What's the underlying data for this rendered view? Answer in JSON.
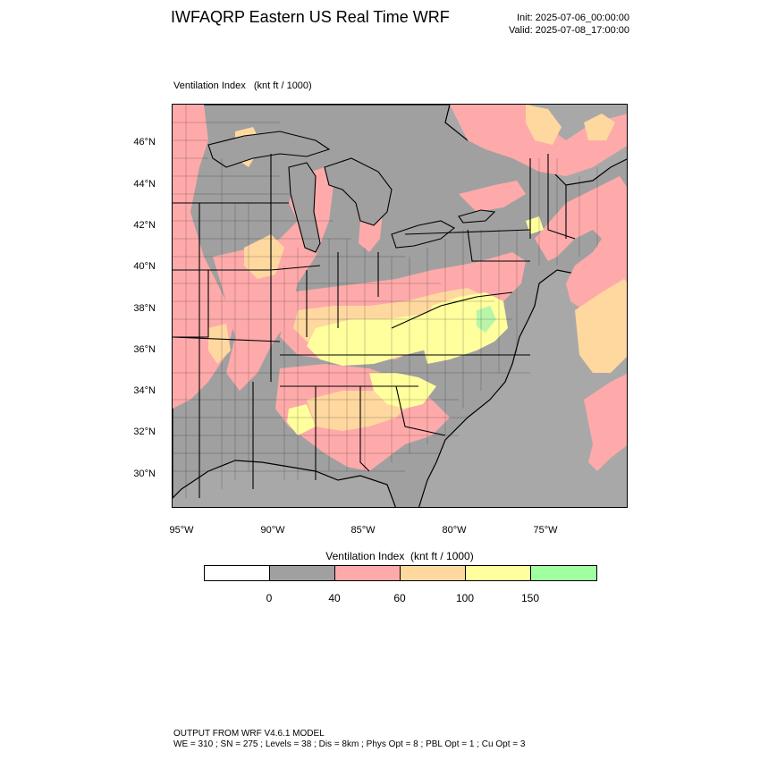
{
  "header": {
    "title": "IWFAQRP Eastern US Real Time WRF",
    "init": "Init: 2025-07-06_00:00:00",
    "valid": "Valid: 2025-07-08_17:00:00"
  },
  "map": {
    "subtitle": "Ventilation Index   (knt ft / 1000)",
    "lat_labels": [
      "46°N",
      "44°N",
      "42°N",
      "40°N",
      "38°N",
      "36°N",
      "34°N",
      "32°N",
      "30°N"
    ],
    "lon_labels": [
      "95°W",
      "90°W",
      "85°W",
      "80°W",
      "75°W"
    ],
    "colors": {
      "land_low": "#a0a0a0",
      "pink": "#ffaaaa",
      "orange": "#ffd8a0",
      "yellow": "#ffff9e",
      "green": "#a0ffa0",
      "water": "#a8a8a8"
    }
  },
  "colorbar": {
    "title": "Ventilation Index  (knt ft / 1000)",
    "bins": [
      {
        "color": "#ffffff"
      },
      {
        "color": "#a0a0a0"
      },
      {
        "color": "#ffaaaa"
      },
      {
        "color": "#ffd8a0"
      },
      {
        "color": "#ffff9e"
      },
      {
        "color": "#a0ffa0"
      }
    ],
    "labels": [
      "0",
      "40",
      "60",
      "100",
      "150"
    ]
  },
  "footer": {
    "line1": "OUTPUT FROM WRF V4.6.1 MODEL",
    "line2": "WE = 310 ; SN = 275 ; Levels = 38 ; Dis = 8km ; Phys Opt = 8 ; PBL Opt = 1 ; Cu Opt = 3"
  }
}
